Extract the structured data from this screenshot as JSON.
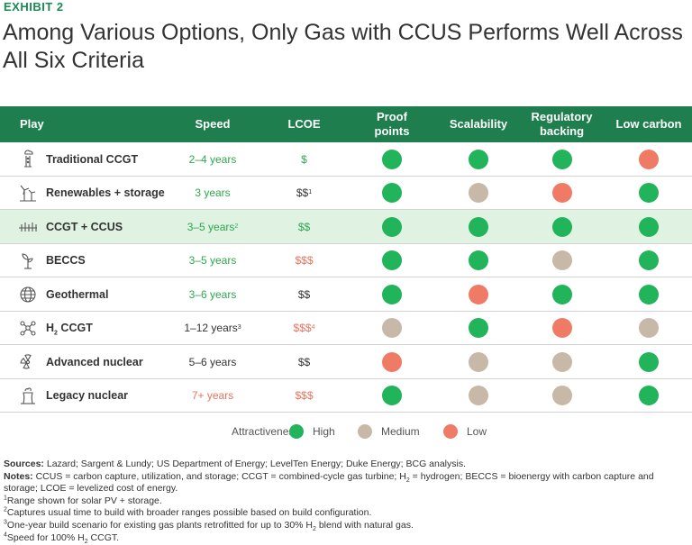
{
  "exhibit": "EXHIBIT 2",
  "title": "Among Various Options, Only Gas with CCUS Performs Well Across All Six Criteria",
  "headers": {
    "play": "Play",
    "speed": "Speed",
    "lcoe": "LCOE",
    "proof1": "Proof",
    "proof2": "points",
    "scal": "Scalability",
    "reg1": "Regulatory",
    "reg2": "backing",
    "low": "Low carbon"
  },
  "rows": [
    {
      "name": "Traditional CCGT",
      "icon": "gas-plant-icon",
      "speed": "2–4 years",
      "speed_color": "green",
      "lcoe": "$",
      "lcoe_color": "green",
      "proof": "high",
      "scal": "high",
      "reg": "high",
      "low": "low"
    },
    {
      "name": "Renewables + storage",
      "icon": "wind-turbine-icon",
      "speed": "3 years",
      "speed_color": "green",
      "lcoe": "$$",
      "lcoe_sup": "1",
      "lcoe_color": "dark",
      "proof": "high",
      "scal": "medium",
      "reg": "low",
      "low": "high"
    },
    {
      "name": "CCGT + CCUS",
      "icon": "pipeline-icon",
      "speed": "3–5 years",
      "speed_sup": "2",
      "speed_color": "green",
      "lcoe": "$$",
      "lcoe_color": "green",
      "proof": "high",
      "scal": "high",
      "reg": "high",
      "low": "high",
      "highlight": true
    },
    {
      "name": "BECCS",
      "icon": "plant-sprout-icon",
      "speed": "3–5 years",
      "speed_color": "green",
      "lcoe": "$$$",
      "lcoe_color": "orange",
      "proof": "high",
      "scal": "high",
      "reg": "medium",
      "low": "high"
    },
    {
      "name": "Geothermal",
      "icon": "globe-icon",
      "speed": "3–6 years",
      "speed_color": "green",
      "lcoe": "$$",
      "lcoe_color": "dark",
      "proof": "high",
      "scal": "low",
      "reg": "high",
      "low": "high"
    },
    {
      "name": "H",
      "name_sub": "2",
      "name_rest": " CCGT",
      "icon": "molecule-icon",
      "speed": "1–12 years",
      "speed_sup": "3",
      "speed_color": "dark",
      "lcoe": "$$$",
      "lcoe_sup": "4",
      "lcoe_color": "orange",
      "proof": "medium",
      "scal": "high",
      "reg": "low",
      "low": "medium"
    },
    {
      "name": "Advanced nuclear",
      "icon": "radiation-icon",
      "speed": "5–6 years",
      "speed_color": "dark",
      "lcoe": "$$",
      "lcoe_color": "dark",
      "proof": "low",
      "scal": "medium",
      "reg": "medium",
      "low": "high"
    },
    {
      "name": "Legacy nuclear",
      "icon": "cooling-tower-icon",
      "speed": "7+ years",
      "speed_color": "orange",
      "lcoe": "$$$",
      "lcoe_color": "orange",
      "proof": "high",
      "scal": "medium",
      "reg": "medium",
      "low": "high"
    }
  ],
  "legend": {
    "label": "Attractiveness:",
    "high": "High",
    "medium": "Medium",
    "low": "Low"
  },
  "colors": {
    "header_bg": "#1e7e4e",
    "high": "#21b45a",
    "medium": "#c7b8a7",
    "low": "#ef7b66",
    "highlight_row": "#e0f2e1"
  },
  "sources": {
    "sources_label": "Sources:",
    "sources_text": " Lazard; Sargent & Lundy; US Department of Energy; LevelTen Energy; Duke Energy; BCG analysis.",
    "notes_label": "Notes:",
    "notes_a": " CCUS = carbon capture, utilization, and storage; CCGT = combined-cycle gas turbine; H",
    "notes_sub": "2",
    "notes_b": " = hydrogen; BECCS = bioenergy with carbon capture and storage; LCOE = levelized cost of energy.",
    "fn1_mark": "1",
    "fn1": "Range shown for solar PV + storage.",
    "fn2_mark": "2",
    "fn2": "Captures usual time to build with broader ranges possible based on build configuration.",
    "fn3_mark": "3",
    "fn3_a": "One-year build scenario for existing gas plants retrofitted for up to 30% H",
    "fn3_sub": "2",
    "fn3_b": " blend with natural gas.",
    "fn4_mark": "4",
    "fn4_a": "Speed for 100% H",
    "fn4_sub": "2",
    "fn4_b": " CCGT."
  }
}
